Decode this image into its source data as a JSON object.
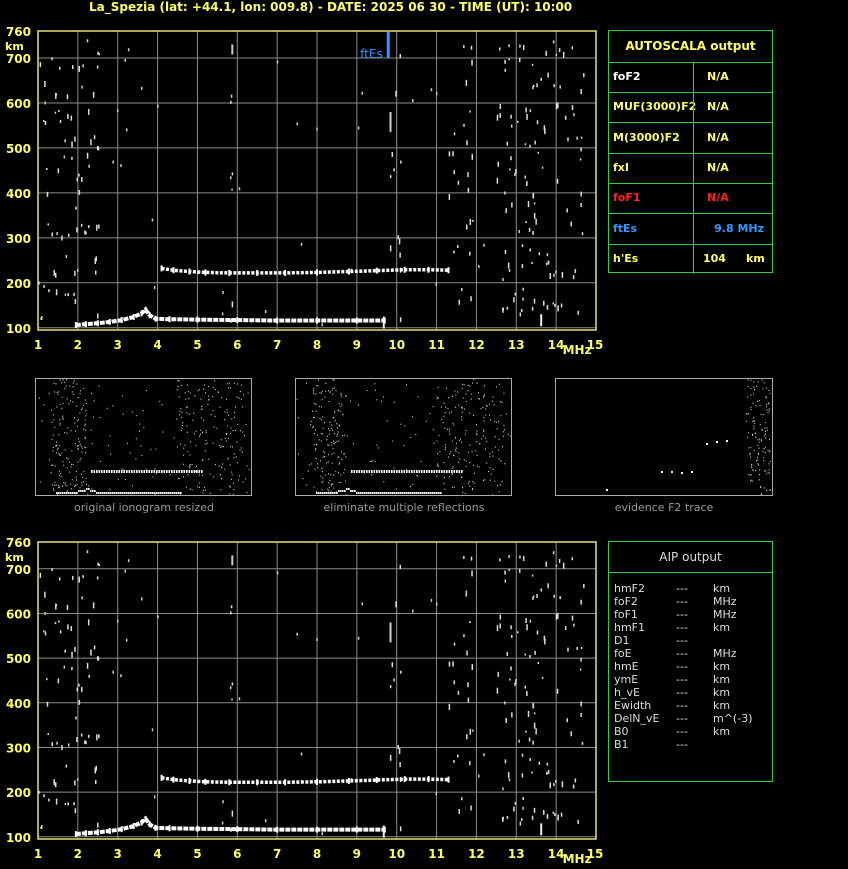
{
  "header": "La_Spezia (lat: +44.1, lon: 009.8) - DATE: 2025 06 30 - TIME (UT): 10:00",
  "colors": {
    "grid": "#8c8c8c",
    "frame": "#e6e07a",
    "axis_text": "#ffff66",
    "panel_border": "#33cc44",
    "red": "#ff2222",
    "blue": "#3399ff"
  },
  "chart_data": [
    {
      "type": "scatter",
      "title": "",
      "xlabel": "MHz",
      "ylabel": "km",
      "xlim": [
        1,
        15
      ],
      "ylim": [
        95,
        760
      ],
      "x_ticks": [
        "1",
        "2",
        "3",
        "4",
        "5",
        "6",
        "7",
        "8",
        "9",
        "10",
        "11",
        "12",
        "13",
        "14",
        "15"
      ],
      "y_ticks": [
        "100",
        "200",
        "300",
        "400",
        "500",
        "600",
        "700",
        "760"
      ],
      "grid": true,
      "traces": [
        {
          "name": "E trace",
          "x": [
            1.95,
            2.2,
            2.5,
            2.8,
            3.1,
            3.4,
            3.6,
            3.7,
            3.8,
            3.95,
            4.3,
            5.0,
            6.0,
            7.0,
            8.0,
            9.0,
            9.7
          ],
          "y": [
            106,
            108,
            110,
            113,
            117,
            124,
            132,
            140,
            128,
            120,
            119,
            118,
            117,
            116,
            116,
            116,
            116
          ]
        },
        {
          "name": "F trace",
          "x": [
            4.1,
            4.4,
            4.8,
            5.2,
            5.8,
            6.5,
            7.2,
            8.0,
            8.8,
            9.5,
            10.2,
            10.8,
            11.3
          ],
          "y": [
            232,
            228,
            225,
            223,
            222,
            222,
            222,
            223,
            225,
            227,
            229,
            229,
            228
          ]
        }
      ],
      "ftEs_marker": {
        "label": "ftEs",
        "x": 9.8
      }
    },
    {
      "type": "scatter",
      "title": "",
      "xlabel": "MHz",
      "ylabel": "km",
      "xlim": [
        1,
        15
      ],
      "ylim": [
        95,
        760
      ],
      "x_ticks": [
        "1",
        "2",
        "3",
        "4",
        "5",
        "6",
        "7",
        "8",
        "9",
        "10",
        "11",
        "12",
        "13",
        "14",
        "15"
      ],
      "y_ticks": [
        "100",
        "200",
        "300",
        "400",
        "500",
        "600",
        "700",
        "760"
      ],
      "grid": true,
      "traces": [
        {
          "name": "E trace",
          "x": [
            1.95,
            2.2,
            2.5,
            2.8,
            3.1,
            3.4,
            3.6,
            3.7,
            3.8,
            3.95,
            4.3,
            5.0,
            6.0,
            7.0,
            8.0,
            9.0,
            9.7
          ],
          "y": [
            106,
            108,
            110,
            113,
            117,
            124,
            132,
            140,
            128,
            120,
            119,
            118,
            117,
            116,
            116,
            116,
            116
          ]
        },
        {
          "name": "F trace",
          "x": [
            4.1,
            4.4,
            4.8,
            5.2,
            5.8,
            6.5,
            7.2,
            8.0,
            8.8,
            9.5,
            10.2,
            10.8,
            11.3
          ],
          "y": [
            232,
            228,
            225,
            223,
            222,
            222,
            222,
            223,
            225,
            227,
            229,
            229,
            228
          ]
        }
      ]
    }
  ],
  "autoscala": {
    "title": "AUTOSCALA output",
    "rows": [
      {
        "label": "foF2",
        "value": "N/A",
        "color": "#ffffff",
        "vcolor": "#ffff66"
      },
      {
        "label": "MUF(3000)F2",
        "value": "N/A",
        "color": "#ffff66",
        "vcolor": "#ffff66"
      },
      {
        "label": "M(3000)F2",
        "value": "N/A",
        "color": "#ffff66",
        "vcolor": "#ffff66"
      },
      {
        "label": "fxI",
        "value": "N/A",
        "color": "#ffff66",
        "vcolor": "#ffff66"
      },
      {
        "label": "foF1",
        "value": "N/A",
        "color": "#ff2222",
        "vcolor": "#ff2222"
      },
      {
        "label": "ftEs",
        "value": "9.8 MHz",
        "color": "#3399ff",
        "vcolor": "#3399ff"
      },
      {
        "label": "h'Es",
        "value": "104",
        "unit": "km",
        "color": "#ffff66",
        "vcolor": "#ffff66"
      }
    ]
  },
  "thumbnails": [
    {
      "caption": "original ionogram resized"
    },
    {
      "caption": "eliminate multiple reflections"
    },
    {
      "caption": "evidence F2 trace"
    }
  ],
  "aip": {
    "title": "AIP output",
    "rows": [
      {
        "param": "hmF2",
        "value": "---",
        "unit": "km"
      },
      {
        "param": "foF2",
        "value": "---",
        "unit": "MHz"
      },
      {
        "param": "foF1",
        "value": "---",
        "unit": "MHz"
      },
      {
        "param": "hmF1",
        "value": "---",
        "unit": "km"
      },
      {
        "param": "D1",
        "value": "---",
        "unit": ""
      },
      {
        "param": "foE",
        "value": "---",
        "unit": "MHz"
      },
      {
        "param": "hmE",
        "value": "---",
        "unit": "km"
      },
      {
        "param": "ymE",
        "value": "---",
        "unit": "km"
      },
      {
        "param": "h_vE",
        "value": "---",
        "unit": "km"
      },
      {
        "param": "Ewidth",
        "value": "---",
        "unit": "km"
      },
      {
        "param": "DelN_vE",
        "value": "---",
        "unit": "m^(-3)"
      },
      {
        "param": "B0",
        "value": "---",
        "unit": "km"
      },
      {
        "param": "B1",
        "value": "---",
        "unit": ""
      }
    ]
  }
}
